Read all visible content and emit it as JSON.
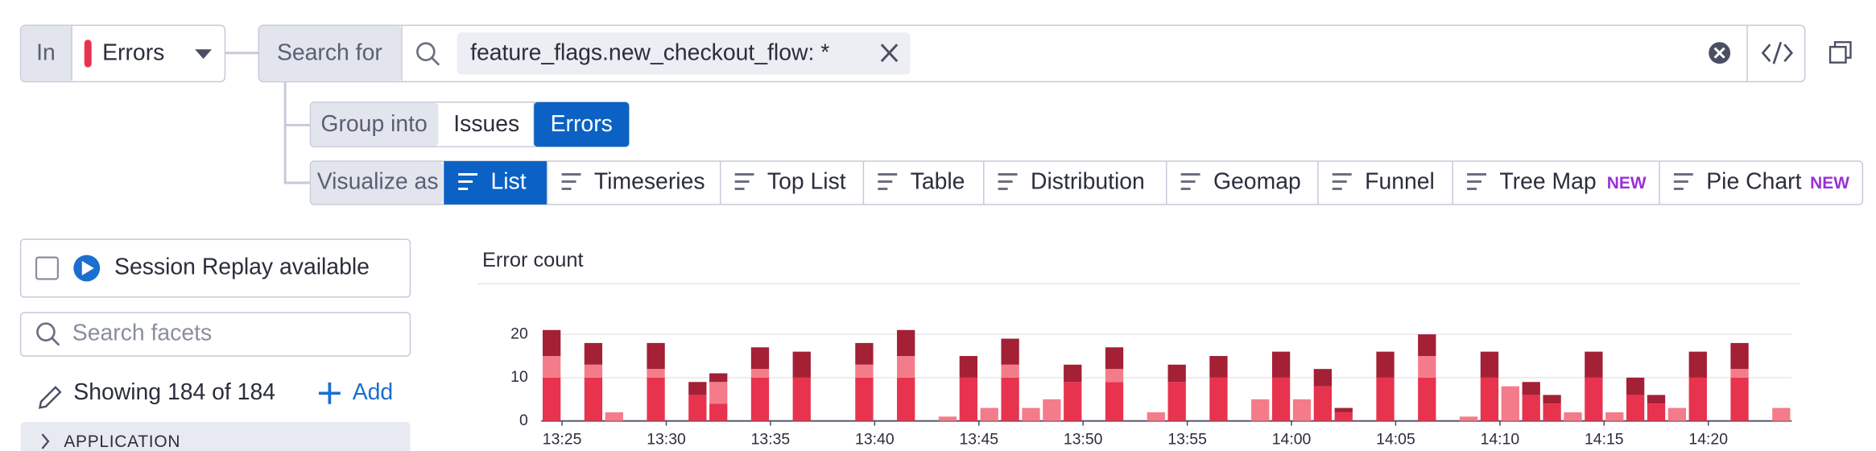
{
  "scope": {
    "label": "In",
    "value": "Errors"
  },
  "search": {
    "label": "Search for",
    "query": "feature_flags.new_checkout_flow: *"
  },
  "group_into": {
    "label": "Group into",
    "options": [
      "Issues",
      "Errors"
    ],
    "selected": 1
  },
  "visualize_as": {
    "label": "Visualize as",
    "selected": 0,
    "options": [
      {
        "label": "List"
      },
      {
        "label": "Timeseries"
      },
      {
        "label": "Top List"
      },
      {
        "label": "Table"
      },
      {
        "label": "Distribution"
      },
      {
        "label": "Geomap"
      },
      {
        "label": "Funnel"
      },
      {
        "label": "Tree Map",
        "badge": "NEW"
      },
      {
        "label": "Pie Chart",
        "badge": "NEW"
      }
    ]
  },
  "sidebar": {
    "session_replay": "Session Replay available",
    "search_placeholder": "Search facets",
    "showing": "Showing 184 of 184",
    "add": "Add",
    "section": "APPLICATION"
  },
  "chart_data": {
    "type": "stacked_bar",
    "title": "Error count",
    "categories": [
      null,
      "13:25",
      null,
      null,
      null,
      null,
      "13:30",
      null,
      null,
      null,
      null,
      "13:35",
      null,
      null,
      null,
      null,
      "13:40",
      null,
      null,
      null,
      null,
      "13:45",
      null,
      null,
      null,
      null,
      "13:50",
      null,
      null,
      null,
      null,
      "13:55",
      null,
      null,
      null,
      null,
      "14:00",
      null,
      null,
      null,
      null,
      "14:05",
      null,
      null,
      null,
      null,
      "14:10",
      null,
      null,
      null,
      null,
      "14:15",
      null,
      null,
      null,
      null,
      "14:20",
      null,
      null,
      null
    ],
    "series": [
      {
        "color": "#e8334e",
        "values": [
          10,
          0,
          10,
          0,
          0,
          10,
          0,
          6,
          4,
          0,
          10,
          0,
          10,
          0,
          0,
          10,
          0,
          10,
          0,
          0,
          10,
          0,
          10,
          0,
          0,
          9,
          0,
          9,
          0,
          0,
          9,
          0,
          10,
          0,
          0,
          10,
          0,
          8,
          2,
          0,
          10,
          0,
          10,
          0,
          0,
          10,
          0,
          6,
          4,
          0,
          10,
          0,
          6,
          4,
          0,
          10,
          0,
          10,
          0,
          0
        ]
      },
      {
        "color": "#f47c8a",
        "values": [
          5,
          0,
          3,
          2,
          0,
          2,
          0,
          0,
          5,
          0,
          2,
          0,
          0,
          0,
          0,
          3,
          0,
          5,
          0,
          1,
          0,
          3,
          3,
          3,
          5,
          0,
          0,
          3,
          0,
          2,
          0,
          0,
          0,
          0,
          5,
          0,
          5,
          0,
          0,
          0,
          0,
          0,
          5,
          0,
          1,
          0,
          8,
          0,
          0,
          2,
          0,
          2,
          0,
          0,
          3,
          0,
          0,
          2,
          0,
          3
        ]
      },
      {
        "color": "#a32035",
        "values": [
          6,
          0,
          5,
          0,
          0,
          6,
          0,
          3,
          2,
          0,
          5,
          0,
          6,
          0,
          0,
          5,
          0,
          6,
          0,
          0,
          5,
          0,
          6,
          0,
          0,
          4,
          0,
          5,
          0,
          0,
          4,
          0,
          5,
          0,
          0,
          6,
          0,
          4,
          1,
          0,
          6,
          0,
          5,
          0,
          0,
          6,
          0,
          3,
          2,
          0,
          6,
          0,
          4,
          2,
          0,
          6,
          0,
          6,
          0,
          0
        ]
      }
    ],
    "ylim": [
      0,
      22
    ],
    "yticks": [
      0,
      10,
      20
    ],
    "grid": true
  }
}
